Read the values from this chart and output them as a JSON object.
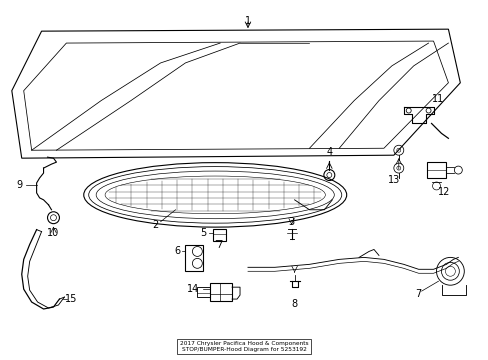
{
  "background_color": "#ffffff",
  "line_color": "#000000",
  "fig_width": 4.89,
  "fig_height": 3.6,
  "dpi": 100,
  "title": "2017 Chrysler Pacifica Hood & Components\nSTOP/BUMPER-Hood Diagram for 5253192"
}
